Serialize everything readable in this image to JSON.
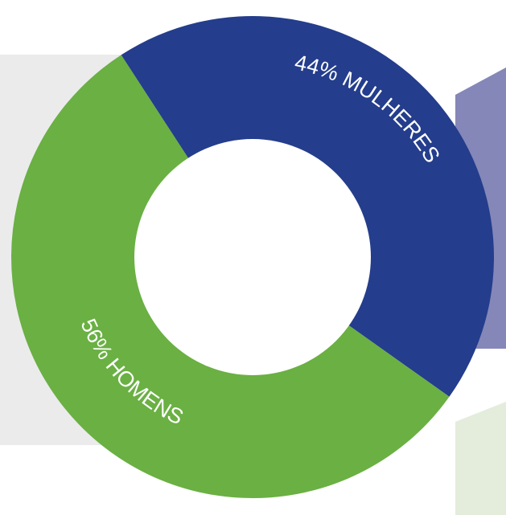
{
  "chart_data": {
    "type": "pie",
    "variant": "donut",
    "slices": [
      {
        "label": "44% MULHERES",
        "value": 44,
        "color": "#243d8c"
      },
      {
        "label": "56% HOMENS",
        "value": 56,
        "color": "#6ab043"
      }
    ],
    "legend": "none"
  },
  "background_colors": {
    "left_panel": "#ebebec",
    "right_top_panel": "#8587b9",
    "right_bottom_panel": "#e4ecdb"
  }
}
